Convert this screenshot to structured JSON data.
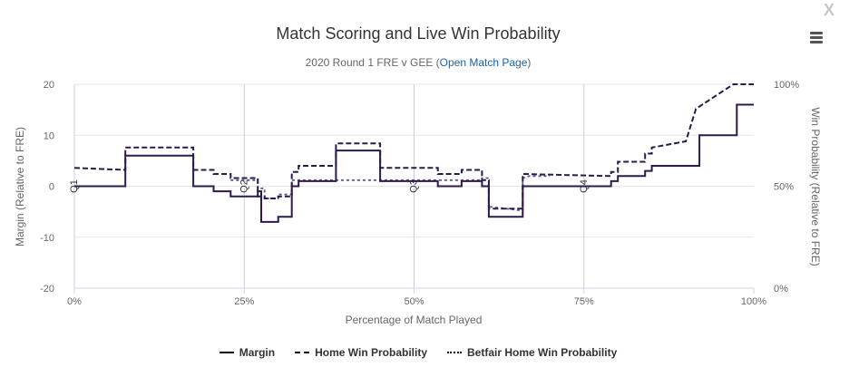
{
  "header": {
    "title": "Match Scoring and Live Win Probability",
    "subtitle_prefix": "2020 Round 1 FRE v GEE (",
    "subtitle_link": "Open Match Page",
    "subtitle_suffix": ")",
    "close_label": "X"
  },
  "legend": {
    "margin": "Margin",
    "home_wp": "Home Win Probability",
    "betfair_wp": "Betfair Home Win Probability"
  },
  "colors": {
    "margin": "#2d1a4a",
    "home_wp": "#2d1a4a",
    "betfair": "#5a5a8a",
    "grid": "#e6e6e6",
    "quarter_line": "#c8cce0"
  },
  "chart_data": {
    "type": "line",
    "xlabel": "Percentage of Match Played",
    "ylabel": "Margin (Relative to FRE)",
    "y2label": "Win Probability (Relative to FRE)",
    "xlim": [
      0,
      100
    ],
    "ylim": [
      -20,
      20
    ],
    "y2lim": [
      0,
      100
    ],
    "x_ticks": [
      "0%",
      "25%",
      "50%",
      "75%",
      "100%"
    ],
    "x_tick_values": [
      0,
      25,
      50,
      75,
      100
    ],
    "y_ticks": [
      20,
      10,
      0,
      -10,
      -20
    ],
    "y2_ticks": [
      "100%",
      "50%",
      "0%"
    ],
    "y2_tick_values": [
      100,
      50,
      0
    ],
    "quarters": [
      {
        "label": "Q1",
        "x": 0
      },
      {
        "label": "Q2",
        "x": 25
      },
      {
        "label": "Q3",
        "x": 50
      },
      {
        "label": "Q4",
        "x": 75
      }
    ],
    "margin_series": {
      "name": "Margin",
      "points": [
        [
          0,
          0
        ],
        [
          7.5,
          0
        ],
        [
          7.5,
          6
        ],
        [
          17.5,
          6
        ],
        [
          17.5,
          0
        ],
        [
          20.5,
          0
        ],
        [
          20.5,
          -1
        ],
        [
          23,
          -1
        ],
        [
          23,
          -2
        ],
        [
          27,
          -2
        ],
        [
          27,
          -1
        ],
        [
          27.5,
          -1
        ],
        [
          27.5,
          -7
        ],
        [
          30,
          -7
        ],
        [
          30,
          -6
        ],
        [
          32,
          -6
        ],
        [
          32,
          0
        ],
        [
          33,
          0
        ],
        [
          33,
          1
        ],
        [
          38.5,
          1
        ],
        [
          38.5,
          7
        ],
        [
          45,
          7
        ],
        [
          45,
          1
        ],
        [
          53.5,
          1
        ],
        [
          53.5,
          0
        ],
        [
          57,
          0
        ],
        [
          57,
          1
        ],
        [
          60,
          1
        ],
        [
          60,
          0
        ],
        [
          61,
          0
        ],
        [
          61,
          -6
        ],
        [
          66,
          -6
        ],
        [
          66,
          0
        ],
        [
          79,
          0
        ],
        [
          79,
          1
        ],
        [
          80,
          1
        ],
        [
          80,
          2
        ],
        [
          84,
          2
        ],
        [
          84,
          3
        ],
        [
          85,
          3
        ],
        [
          85,
          4
        ],
        [
          92,
          4
        ],
        [
          92,
          10
        ],
        [
          97.5,
          10
        ],
        [
          97.5,
          16
        ],
        [
          100,
          16
        ]
      ]
    },
    "home_wp_series": {
      "name": "Home Win Probability",
      "points": [
        [
          0,
          59
        ],
        [
          7.5,
          58
        ],
        [
          7.5,
          69
        ],
        [
          17.5,
          69
        ],
        [
          17.5,
          58
        ],
        [
          20.5,
          58
        ],
        [
          20.5,
          56
        ],
        [
          23,
          56
        ],
        [
          23,
          54
        ],
        [
          27,
          54
        ],
        [
          27,
          45
        ],
        [
          28,
          45
        ],
        [
          28,
          44
        ],
        [
          30,
          44
        ],
        [
          30,
          45
        ],
        [
          32,
          45
        ],
        [
          32,
          57
        ],
        [
          33,
          57
        ],
        [
          33,
          60
        ],
        [
          38.5,
          60
        ],
        [
          38.5,
          71
        ],
        [
          45,
          71
        ],
        [
          45,
          59
        ],
        [
          53.5,
          59
        ],
        [
          53.5,
          56
        ],
        [
          57,
          56
        ],
        [
          57,
          58
        ],
        [
          60,
          58
        ],
        [
          60,
          53
        ],
        [
          61,
          53
        ],
        [
          61,
          39
        ],
        [
          66,
          39
        ],
        [
          66,
          56
        ],
        [
          79,
          55
        ],
        [
          79,
          57
        ],
        [
          80,
          57
        ],
        [
          80,
          62
        ],
        [
          84,
          62
        ],
        [
          84,
          66
        ],
        [
          85,
          66
        ],
        [
          85,
          69
        ],
        [
          90,
          72
        ],
        [
          91.5,
          88
        ],
        [
          97,
          100
        ],
        [
          100,
          100
        ]
      ]
    },
    "betfair_wp_series": {
      "name": "Betfair Home Win Probability",
      "points": [
        [
          23,
          53
        ],
        [
          27,
          53
        ],
        [
          27,
          49
        ],
        [
          28,
          49
        ],
        [
          28,
          44
        ],
        [
          30,
          44
        ],
        [
          30,
          46
        ],
        [
          32,
          46
        ],
        [
          32,
          53
        ],
        [
          60,
          53
        ],
        [
          60,
          54
        ],
        [
          61,
          54
        ],
        [
          61,
          40
        ],
        [
          66,
          38
        ],
        [
          66,
          54
        ],
        [
          67,
          55
        ],
        [
          70,
          55
        ]
      ]
    }
  }
}
